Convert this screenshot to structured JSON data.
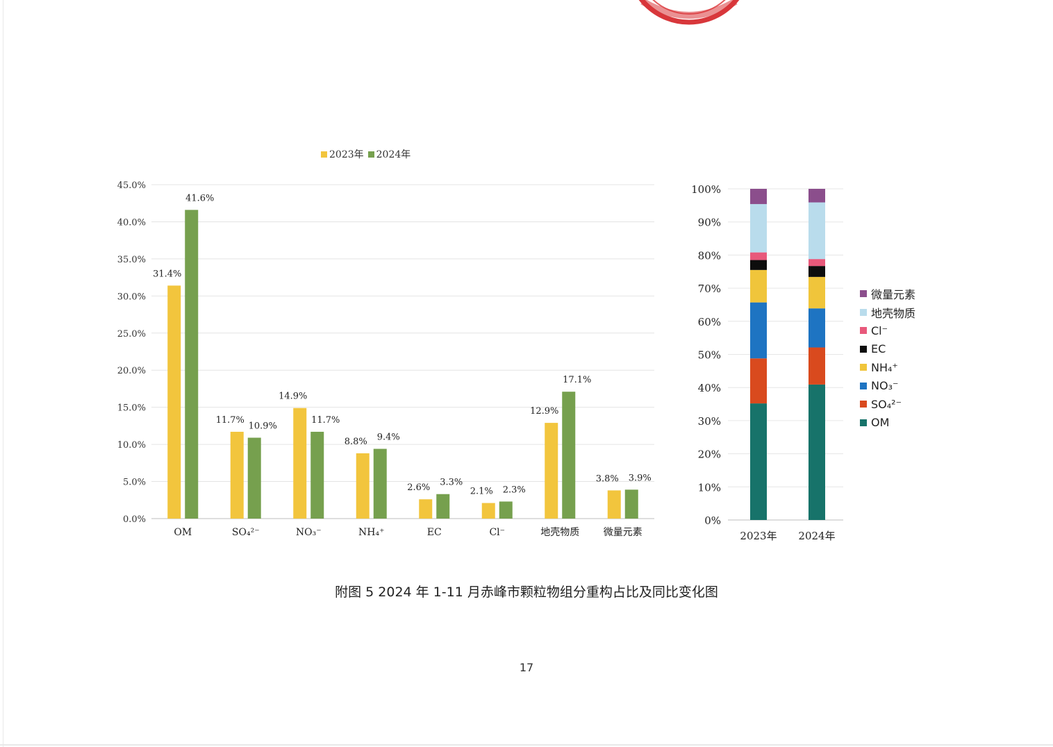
{
  "caption": "附图 5   2024 年 1-11 月赤峰市颗粒物组分重构占比及同比变化图",
  "page_number": "17",
  "colors": {
    "y2023": "#f2c53d",
    "y2024": "#76a04e",
    "stack": [
      "#17736a",
      "#d94a1e",
      "#1e74c2",
      "#f0c53b",
      "#0d0d0d",
      "#e8597b",
      "#b9dcec",
      "#8b4e8c"
    ]
  },
  "chart_data": [
    {
      "type": "bar",
      "legend_position": "top",
      "categories": [
        "OM",
        "SO₄²⁻",
        "NO₃⁻",
        "NH₄⁺",
        "EC",
        "Cl⁻",
        "地壳物质",
        "微量元素"
      ],
      "series": [
        {
          "name": "2023年",
          "values": [
            31.4,
            11.7,
            14.9,
            8.8,
            2.6,
            2.1,
            12.9,
            3.8
          ],
          "labels": [
            "31.4%",
            "11.7%",
            "14.9%",
            "8.8%",
            "2.6%",
            "2.1%",
            "12.9%",
            "3.8%"
          ]
        },
        {
          "name": "2024年",
          "values": [
            41.6,
            10.9,
            11.7,
            9.4,
            3.3,
            2.3,
            17.1,
            3.9
          ],
          "labels": [
            "41.6%",
            "10.9%",
            "11.7%",
            "9.4%",
            "3.3%",
            "2.3%",
            "17.1%",
            "3.9%"
          ]
        }
      ],
      "yticks": [
        "0.0%",
        "5.0%",
        "10.0%",
        "15.0%",
        "20.0%",
        "25.0%",
        "30.0%",
        "35.0%",
        "40.0%",
        "45.0%"
      ],
      "ylim": [
        0,
        45
      ],
      "grid": true
    },
    {
      "type": "bar",
      "stacked": true,
      "legend_position": "right",
      "categories": [
        "2023年",
        "2024年"
      ],
      "series": [
        {
          "name": "OM",
          "values": [
            35.2,
            40.9
          ]
        },
        {
          "name": "SO₄²⁻",
          "values": [
            13.6,
            11.2
          ]
        },
        {
          "name": "NO₃⁻",
          "values": [
            16.9,
            11.8
          ]
        },
        {
          "name": "NH₄⁺",
          "values": [
            9.8,
            9.5
          ]
        },
        {
          "name": "EC",
          "values": [
            3.0,
            3.3
          ]
        },
        {
          "name": "Cl⁻",
          "values": [
            2.3,
            2.1
          ]
        },
        {
          "name": "地壳物质",
          "values": [
            14.6,
            17.1
          ]
        },
        {
          "name": "微量元素",
          "values": [
            4.6,
            4.1
          ]
        }
      ],
      "yticks": [
        "0%",
        "10%",
        "20%",
        "30%",
        "40%",
        "50%",
        "60%",
        "70%",
        "80%",
        "90%",
        "100%"
      ],
      "ylim": [
        0,
        100
      ],
      "grid": true
    }
  ]
}
